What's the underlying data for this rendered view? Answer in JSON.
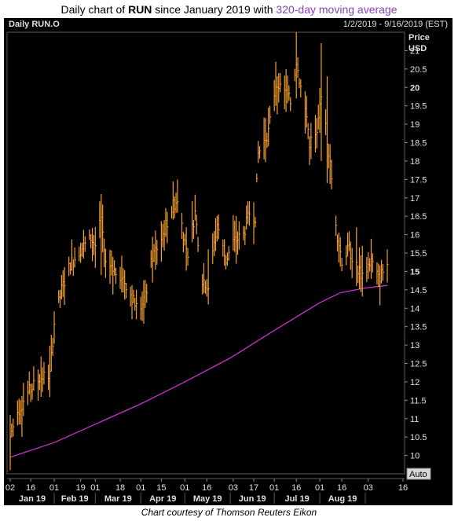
{
  "title": {
    "prefix": "Daily chart of ",
    "ticker": "RUN",
    "middle": " since January 2019 with ",
    "ma_label": "320-day moving average"
  },
  "header": {
    "symbol_label": "Daily RUN.O",
    "date_range": "1/2/2019 - 9/16/2019 (EST)"
  },
  "axis": {
    "price_label": "Price",
    "currency_label": "USD",
    "auto_button": "Auto"
  },
  "credit": "Chart courtesy of Thomson Reuters Eikon",
  "colors": {
    "background": "#000000",
    "price_bars": "#f5a030",
    "moving_average": "#cc33cc",
    "axis_text": "#e0e0e0",
    "title_accent": "#8a3fbf"
  },
  "chart_data": {
    "type": "line",
    "title": "Daily chart of RUN since January 2019 with 320-day moving average",
    "ylim": [
      9.5,
      21.5
    ],
    "y_ticks": [
      10,
      10.5,
      11,
      11.5,
      12,
      12.5,
      13,
      13.5,
      14,
      14.5,
      15,
      15.5,
      16,
      16.5,
      17,
      17.5,
      18,
      18.5,
      19,
      19.5,
      20,
      20.5,
      21
    ],
    "y_bold_ticks": [
      15,
      20
    ],
    "x_day_ticks": [
      "02",
      "16",
      "01",
      "19",
      "01",
      "18",
      "01",
      "15",
      "01",
      "16",
      "03",
      "17",
      "01",
      "16",
      "01",
      "16",
      "03",
      "16"
    ],
    "x_month_labels": [
      "Jan 19",
      "Feb 19",
      "Mar 19",
      "Apr 19",
      "May 19",
      "Jun 19",
      "Jul 19",
      "Aug 19"
    ],
    "series": [
      {
        "name": "RUN.O",
        "style": "daily high-low bars",
        "x_range": [
          "2019-01-02",
          "2019-09-16"
        ],
        "close_path": [
          [
            "2019-01-02",
            10.5
          ],
          [
            "2019-01-07",
            11.2
          ],
          [
            "2019-01-14",
            11.7
          ],
          [
            "2019-01-22",
            12.1
          ],
          [
            "2019-01-29",
            12.2
          ],
          [
            "2019-02-01",
            13.6
          ],
          [
            "2019-02-06",
            14.5
          ],
          [
            "2019-02-12",
            15.2
          ],
          [
            "2019-02-19",
            15.6
          ],
          [
            "2019-02-26",
            15.9
          ],
          [
            "2019-03-01",
            15.7
          ],
          [
            "2019-03-05",
            16.4
          ],
          [
            "2019-03-08",
            15.1
          ],
          [
            "2019-03-14",
            15.0
          ],
          [
            "2019-03-19",
            14.9
          ],
          [
            "2019-03-25",
            14.4
          ],
          [
            "2019-03-29",
            14.0
          ],
          [
            "2019-04-04",
            14.3
          ],
          [
            "2019-04-09",
            15.4
          ],
          [
            "2019-04-15",
            15.9
          ],
          [
            "2019-04-22",
            16.7
          ],
          [
            "2019-04-26",
            17.0
          ],
          [
            "2019-05-01",
            15.8
          ],
          [
            "2019-05-03",
            15.5
          ],
          [
            "2019-05-08",
            16.6
          ],
          [
            "2019-05-13",
            14.8
          ],
          [
            "2019-05-17",
            14.6
          ],
          [
            "2019-05-23",
            16.3
          ],
          [
            "2019-05-29",
            15.3
          ],
          [
            "2019-06-03",
            15.8
          ],
          [
            "2019-06-10",
            16.0
          ],
          [
            "2019-06-14",
            16.6
          ],
          [
            "2019-06-18",
            16.5
          ],
          [
            "2019-06-20",
            18.2
          ],
          [
            "2019-06-27",
            18.8
          ],
          [
            "2019-07-02",
            20.1
          ],
          [
            "2019-07-08",
            19.9
          ],
          [
            "2019-07-12",
            19.6
          ],
          [
            "2019-07-16",
            20.7
          ],
          [
            "2019-07-19",
            20.0
          ],
          [
            "2019-07-23",
            19.2
          ],
          [
            "2019-07-25",
            18.5
          ],
          [
            "2019-07-30",
            18.7
          ],
          [
            "2019-08-02",
            19.9
          ],
          [
            "2019-08-06",
            18.6
          ],
          [
            "2019-08-09",
            17.5
          ],
          [
            "2019-08-13",
            16.0
          ],
          [
            "2019-08-16",
            15.3
          ],
          [
            "2019-08-21",
            15.6
          ],
          [
            "2019-08-26",
            15.1
          ],
          [
            "2019-08-30",
            14.9
          ],
          [
            "2019-09-05",
            15.3
          ],
          [
            "2019-09-10",
            14.8
          ],
          [
            "2019-09-16",
            15.2
          ]
        ],
        "highs_lows": [
          [
            "2019-01-02",
            9.6,
            11.1
          ],
          [
            "2019-03-05",
            14.9,
            17.1
          ],
          [
            "2019-03-29",
            13.7,
            14.5
          ],
          [
            "2019-04-26",
            16.6,
            17.5
          ],
          [
            "2019-05-17",
            14.1,
            15.6
          ],
          [
            "2019-07-02",
            19.5,
            20.7
          ],
          [
            "2019-07-16",
            19.7,
            21.5
          ],
          [
            "2019-08-02",
            18.0,
            21.2
          ],
          [
            "2019-08-06",
            17.4,
            20.3
          ],
          [
            "2019-08-26",
            14.6,
            16.2
          ],
          [
            "2019-09-16",
            14.7,
            15.6
          ]
        ]
      },
      {
        "name": "320-day moving average",
        "points": [
          [
            "2019-01-02",
            9.95
          ],
          [
            "2019-02-01",
            10.35
          ],
          [
            "2019-03-01",
            10.85
          ],
          [
            "2019-04-01",
            11.4
          ],
          [
            "2019-05-01",
            12.0
          ],
          [
            "2019-06-01",
            12.65
          ],
          [
            "2019-07-01",
            13.4
          ],
          [
            "2019-08-01",
            14.15
          ],
          [
            "2019-08-15",
            14.42
          ],
          [
            "2019-09-01",
            14.55
          ],
          [
            "2019-09-16",
            14.62
          ]
        ]
      }
    ]
  }
}
